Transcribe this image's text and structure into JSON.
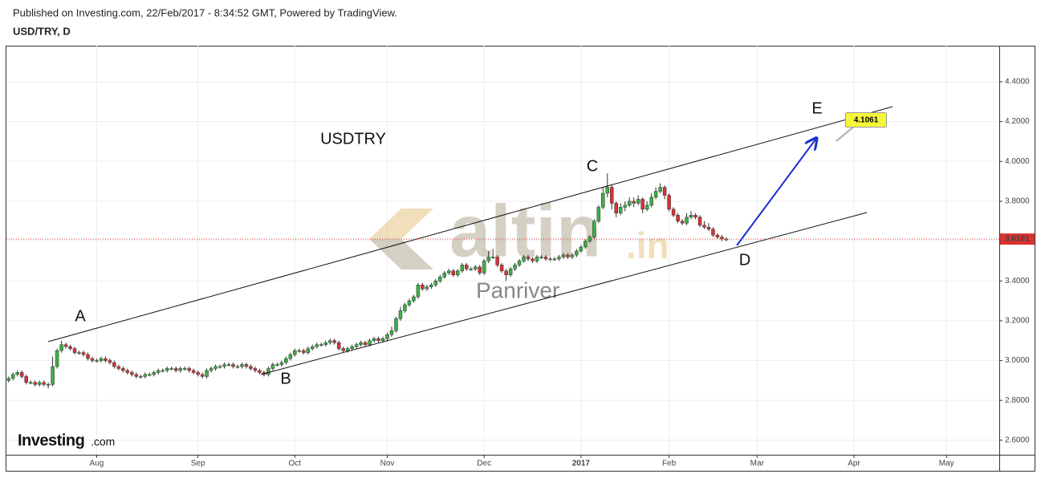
{
  "chart_data": {
    "type": "candlestick",
    "published": "Published on Investing.com, 22/Feb/2017 - 8:34:52 GMT, Powered by TradingView.",
    "symbol": "USD/TRY, D",
    "title": "USDTRY",
    "annotations": [
      "A",
      "B",
      "C",
      "D",
      "E"
    ],
    "target_label": "4.1061",
    "watermark": {
      "main": "altin",
      "suffix": ".in",
      "sub": "Panriver"
    },
    "logo": {
      "main": "Investing",
      "suffix": ".com"
    },
    "last_price": {
      "value": 3.6101,
      "label": "3.6101"
    },
    "up_color": "#3cb043",
    "down_color": "#d93232",
    "ylim": [
      2.527,
      4.581
    ],
    "yticks": [
      {
        "value": 2.6,
        "label": "2.6000"
      },
      {
        "value": 2.8,
        "label": "2.8000"
      },
      {
        "value": 3.0,
        "label": "3.0000"
      },
      {
        "value": 3.2,
        "label": "3.2000"
      },
      {
        "value": 3.4,
        "label": "3.4000"
      },
      {
        "value": 3.6,
        "label": "3.6000"
      },
      {
        "value": 3.8,
        "label": "3.8000"
      },
      {
        "value": 4.0,
        "label": "4.0000"
      },
      {
        "value": 4.2,
        "label": "4.2000"
      },
      {
        "value": 4.4,
        "label": "4.4000"
      }
    ],
    "xlim": [
      -0.5,
      225
    ],
    "xticks": [
      {
        "value": 20,
        "label": "Aug"
      },
      {
        "value": 43,
        "label": "Sep"
      },
      {
        "value": 65,
        "label": "Oct"
      },
      {
        "value": 86,
        "label": "Nov"
      },
      {
        "value": 108,
        "label": "Dec"
      },
      {
        "value": 130,
        "label": "2017"
      },
      {
        "value": 150,
        "label": "Feb"
      },
      {
        "value": 170,
        "label": "Mar"
      },
      {
        "value": 192,
        "label": "Apr"
      },
      {
        "value": 213,
        "label": "May"
      }
    ],
    "grid": true,
    "candles": [
      [
        2.9,
        2.92,
        2.89,
        2.91
      ],
      [
        2.91,
        2.94,
        2.9,
        2.93
      ],
      [
        2.93,
        2.95,
        2.92,
        2.94
      ],
      [
        2.94,
        2.95,
        2.91,
        2.92
      ],
      [
        2.92,
        2.93,
        2.88,
        2.89
      ],
      [
        2.89,
        2.9,
        2.88,
        2.89
      ],
      [
        2.89,
        2.9,
        2.87,
        2.88
      ],
      [
        2.88,
        2.9,
        2.87,
        2.89
      ],
      [
        2.89,
        2.9,
        2.87,
        2.88
      ],
      [
        2.88,
        2.89,
        2.86,
        2.88
      ],
      [
        2.88,
        3.02,
        2.87,
        2.97
      ],
      [
        2.97,
        3.06,
        2.96,
        3.05
      ],
      [
        3.05,
        3.1,
        3.04,
        3.08
      ],
      [
        3.08,
        3.09,
        3.06,
        3.07
      ],
      [
        3.07,
        3.08,
        3.05,
        3.06
      ],
      [
        3.06,
        3.07,
        3.03,
        3.04
      ],
      [
        3.04,
        3.05,
        3.03,
        3.04
      ],
      [
        3.04,
        3.05,
        3.02,
        3.03
      ],
      [
        3.03,
        3.04,
        3.0,
        3.01
      ],
      [
        3.01,
        3.02,
        2.99,
        3.0
      ],
      [
        3.0,
        3.01,
        2.99,
        3.0
      ],
      [
        3.0,
        3.02,
        2.99,
        3.01
      ],
      [
        3.01,
        3.02,
        2.99,
        3.0
      ],
      [
        3.0,
        3.01,
        2.98,
        2.99
      ],
      [
        2.99,
        3.0,
        2.96,
        2.97
      ],
      [
        2.97,
        2.98,
        2.95,
        2.96
      ],
      [
        2.96,
        2.97,
        2.94,
        2.95
      ],
      [
        2.95,
        2.96,
        2.93,
        2.94
      ],
      [
        2.94,
        2.95,
        2.92,
        2.93
      ],
      [
        2.93,
        2.94,
        2.91,
        2.92
      ],
      [
        2.92,
        2.93,
        2.91,
        2.92
      ],
      [
        2.92,
        2.94,
        2.91,
        2.93
      ],
      [
        2.93,
        2.94,
        2.92,
        2.93
      ],
      [
        2.93,
        2.95,
        2.92,
        2.94
      ],
      [
        2.94,
        2.96,
        2.93,
        2.95
      ],
      [
        2.95,
        2.96,
        2.94,
        2.95
      ],
      [
        2.95,
        2.97,
        2.94,
        2.96
      ],
      [
        2.96,
        2.97,
        2.95,
        2.96
      ],
      [
        2.96,
        2.97,
        2.94,
        2.95
      ],
      [
        2.95,
        2.97,
        2.94,
        2.96
      ],
      [
        2.96,
        2.97,
        2.95,
        2.96
      ],
      [
        2.96,
        2.97,
        2.94,
        2.95
      ],
      [
        2.95,
        2.96,
        2.93,
        2.94
      ],
      [
        2.94,
        2.95,
        2.92,
        2.93
      ],
      [
        2.93,
        2.94,
        2.91,
        2.92
      ],
      [
        2.92,
        2.96,
        2.91,
        2.95
      ],
      [
        2.95,
        2.97,
        2.94,
        2.96
      ],
      [
        2.96,
        2.98,
        2.95,
        2.97
      ],
      [
        2.97,
        2.98,
        2.96,
        2.97
      ],
      [
        2.97,
        2.99,
        2.96,
        2.98
      ],
      [
        2.98,
        2.99,
        2.97,
        2.98
      ],
      [
        2.98,
        2.99,
        2.96,
        2.97
      ],
      [
        2.97,
        2.98,
        2.96,
        2.97
      ],
      [
        2.97,
        2.99,
        2.96,
        2.98
      ],
      [
        2.98,
        2.99,
        2.96,
        2.97
      ],
      [
        2.97,
        2.98,
        2.95,
        2.96
      ],
      [
        2.96,
        2.97,
        2.94,
        2.95
      ],
      [
        2.95,
        2.96,
        2.93,
        2.94
      ],
      [
        2.94,
        2.95,
        2.92,
        2.93
      ],
      [
        2.93,
        2.97,
        2.92,
        2.96
      ],
      [
        2.96,
        2.99,
        2.95,
        2.98
      ],
      [
        2.98,
        2.99,
        2.97,
        2.98
      ],
      [
        2.98,
        3.0,
        2.97,
        2.99
      ],
      [
        2.99,
        3.02,
        2.98,
        3.01
      ],
      [
        3.01,
        3.04,
        3.0,
        3.03
      ],
      [
        3.03,
        3.06,
        3.02,
        3.05
      ],
      [
        3.05,
        3.06,
        3.04,
        3.05
      ],
      [
        3.05,
        3.06,
        3.03,
        3.04
      ],
      [
        3.04,
        3.07,
        3.03,
        3.06
      ],
      [
        3.06,
        3.08,
        3.05,
        3.07
      ],
      [
        3.07,
        3.09,
        3.06,
        3.08
      ],
      [
        3.08,
        3.09,
        3.07,
        3.08
      ],
      [
        3.08,
        3.1,
        3.07,
        3.09
      ],
      [
        3.09,
        3.11,
        3.08,
        3.1
      ],
      [
        3.1,
        3.11,
        3.08,
        3.09
      ],
      [
        3.09,
        3.1,
        3.05,
        3.06
      ],
      [
        3.06,
        3.07,
        3.04,
        3.05
      ],
      [
        3.05,
        3.07,
        3.04,
        3.06
      ],
      [
        3.06,
        3.08,
        3.05,
        3.07
      ],
      [
        3.07,
        3.09,
        3.06,
        3.08
      ],
      [
        3.08,
        3.1,
        3.07,
        3.09
      ],
      [
        3.09,
        3.1,
        3.07,
        3.08
      ],
      [
        3.08,
        3.11,
        3.07,
        3.1
      ],
      [
        3.1,
        3.12,
        3.09,
        3.11
      ],
      [
        3.11,
        3.12,
        3.09,
        3.1
      ],
      [
        3.1,
        3.12,
        3.09,
        3.11
      ],
      [
        3.11,
        3.14,
        3.1,
        3.13
      ],
      [
        3.13,
        3.17,
        3.12,
        3.15
      ],
      [
        3.15,
        3.22,
        3.14,
        3.21
      ],
      [
        3.21,
        3.27,
        3.2,
        3.25
      ],
      [
        3.25,
        3.29,
        3.24,
        3.28
      ],
      [
        3.28,
        3.31,
        3.27,
        3.3
      ],
      [
        3.3,
        3.33,
        3.29,
        3.32
      ],
      [
        3.32,
        3.39,
        3.31,
        3.38
      ],
      [
        3.38,
        3.39,
        3.35,
        3.36
      ],
      [
        3.36,
        3.38,
        3.35,
        3.37
      ],
      [
        3.37,
        3.39,
        3.36,
        3.38
      ],
      [
        3.38,
        3.41,
        3.37,
        3.4
      ],
      [
        3.4,
        3.43,
        3.39,
        3.42
      ],
      [
        3.42,
        3.45,
        3.41,
        3.44
      ],
      [
        3.44,
        3.46,
        3.43,
        3.45
      ],
      [
        3.45,
        3.46,
        3.42,
        3.43
      ],
      [
        3.43,
        3.46,
        3.42,
        3.45
      ],
      [
        3.45,
        3.49,
        3.44,
        3.48
      ],
      [
        3.48,
        3.49,
        3.45,
        3.46
      ],
      [
        3.46,
        3.47,
        3.45,
        3.46
      ],
      [
        3.46,
        3.48,
        3.45,
        3.47
      ],
      [
        3.47,
        3.48,
        3.43,
        3.44
      ],
      [
        3.44,
        3.51,
        3.43,
        3.5
      ],
      [
        3.5,
        3.55,
        3.49,
        3.52
      ],
      [
        3.52,
        3.56,
        3.51,
        3.52
      ],
      [
        3.52,
        3.53,
        3.47,
        3.48
      ],
      [
        3.48,
        3.49,
        3.44,
        3.45
      ],
      [
        3.45,
        3.46,
        3.4,
        3.43
      ],
      [
        3.43,
        3.47,
        3.42,
        3.46
      ],
      [
        3.46,
        3.49,
        3.45,
        3.48
      ],
      [
        3.48,
        3.51,
        3.47,
        3.5
      ],
      [
        3.5,
        3.53,
        3.49,
        3.52
      ],
      [
        3.52,
        3.53,
        3.5,
        3.51
      ],
      [
        3.51,
        3.52,
        3.49,
        3.5
      ],
      [
        3.5,
        3.53,
        3.49,
        3.52
      ],
      [
        3.52,
        3.53,
        3.51,
        3.52
      ],
      [
        3.52,
        3.53,
        3.5,
        3.51
      ],
      [
        3.51,
        3.52,
        3.5,
        3.51
      ],
      [
        3.51,
        3.52,
        3.5,
        3.51
      ],
      [
        3.51,
        3.53,
        3.5,
        3.52
      ],
      [
        3.52,
        3.54,
        3.51,
        3.53
      ],
      [
        3.53,
        3.54,
        3.51,
        3.52
      ],
      [
        3.52,
        3.54,
        3.51,
        3.53
      ],
      [
        3.53,
        3.56,
        3.52,
        3.55
      ],
      [
        3.55,
        3.58,
        3.54,
        3.57
      ],
      [
        3.57,
        3.61,
        3.56,
        3.6
      ],
      [
        3.6,
        3.63,
        3.59,
        3.62
      ],
      [
        3.62,
        3.71,
        3.61,
        3.7
      ],
      [
        3.7,
        3.78,
        3.69,
        3.77
      ],
      [
        3.77,
        3.87,
        3.76,
        3.84
      ],
      [
        3.84,
        3.94,
        3.82,
        3.87
      ],
      [
        3.87,
        3.88,
        3.76,
        3.79
      ],
      [
        3.79,
        3.8,
        3.72,
        3.74
      ],
      [
        3.74,
        3.79,
        3.73,
        3.77
      ],
      [
        3.77,
        3.8,
        3.75,
        3.78
      ],
      [
        3.78,
        3.82,
        3.77,
        3.8
      ],
      [
        3.8,
        3.82,
        3.77,
        3.79
      ],
      [
        3.79,
        3.83,
        3.78,
        3.81
      ],
      [
        3.81,
        3.82,
        3.74,
        3.76
      ],
      [
        3.76,
        3.8,
        3.75,
        3.78
      ],
      [
        3.78,
        3.84,
        3.77,
        3.82
      ],
      [
        3.82,
        3.87,
        3.81,
        3.85
      ],
      [
        3.85,
        3.89,
        3.84,
        3.87
      ],
      [
        3.87,
        3.88,
        3.81,
        3.83
      ],
      [
        3.83,
        3.84,
        3.75,
        3.76
      ],
      [
        3.76,
        3.77,
        3.72,
        3.73
      ],
      [
        3.73,
        3.74,
        3.69,
        3.7
      ],
      [
        3.7,
        3.71,
        3.68,
        3.69
      ],
      [
        3.69,
        3.74,
        3.68,
        3.72
      ],
      [
        3.72,
        3.75,
        3.71,
        3.73
      ],
      [
        3.73,
        3.74,
        3.71,
        3.72
      ],
      [
        3.72,
        3.73,
        3.67,
        3.68
      ],
      [
        3.68,
        3.7,
        3.66,
        3.67
      ],
      [
        3.67,
        3.69,
        3.65,
        3.66
      ],
      [
        3.66,
        3.67,
        3.62,
        3.63
      ],
      [
        3.63,
        3.64,
        3.61,
        3.62
      ],
      [
        3.62,
        3.63,
        3.6,
        3.61
      ],
      [
        3.61,
        3.62,
        3.6,
        3.6101
      ]
    ]
  }
}
